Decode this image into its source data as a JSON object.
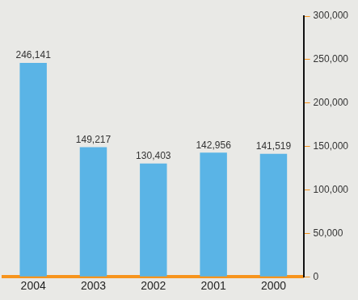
{
  "chart_data": {
    "type": "bar",
    "categories": [
      "2004",
      "2003",
      "2002",
      "2001",
      "2000"
    ],
    "values": [
      246141,
      149217,
      130403,
      142956,
      141519
    ],
    "value_labels": [
      "246,141",
      "149,217",
      "130,403",
      "142,956",
      "141,519"
    ],
    "color": "#5ab4e6",
    "ylim": [
      0,
      300000
    ],
    "yticks": [
      0,
      {
        "value": 50000,
        "label": "50,000"
      },
      {
        "value": 100000,
        "label": "100,000"
      },
      {
        "value": 150000,
        "label": "150,000"
      },
      {
        "value": 200000,
        "label": "200,000"
      },
      {
        "value": 250000,
        "label": "250,000"
      },
      {
        "value": 300000,
        "label": "300,000"
      }
    ],
    "grid": false,
    "data_labels": true
  }
}
